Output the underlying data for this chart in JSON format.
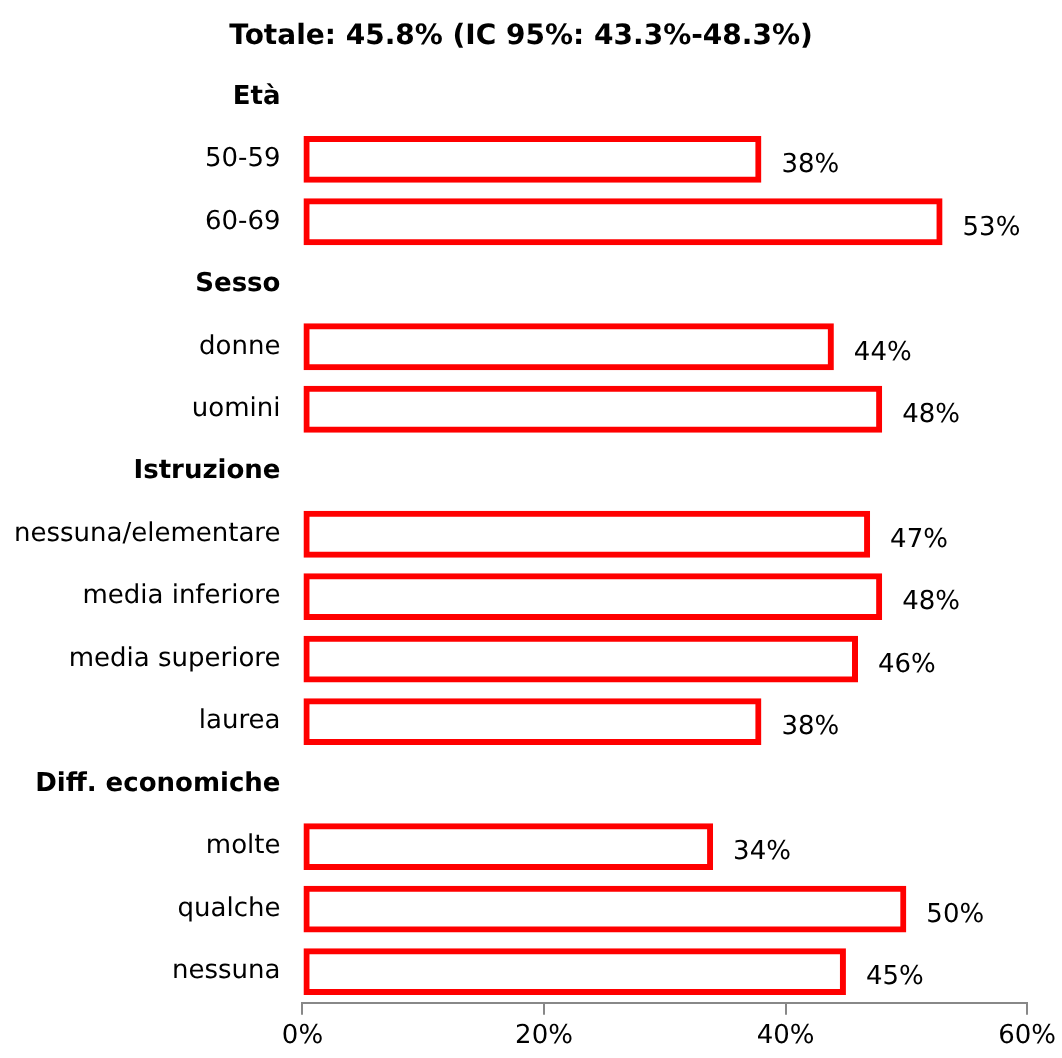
{
  "chart_data": {
    "type": "bar",
    "orientation": "horizontal",
    "title": "Totale: 45.8% (IC 95%: 43.3%-48.3%)",
    "categories": [
      "Età",
      "50-59",
      "60-69",
      "Sesso",
      "donne",
      "uomini",
      "Istruzione",
      "nessuna/elementare",
      "media inferiore",
      "media superiore",
      "laurea",
      "Diff. economiche",
      "molte",
      "qualche",
      "nessuna"
    ],
    "values": [
      null,
      38,
      53,
      null,
      44,
      48,
      null,
      47,
      48,
      46,
      38,
      null,
      34,
      50,
      45
    ],
    "value_labels": [
      null,
      "38%",
      "53%",
      null,
      "44%",
      "48%",
      null,
      "47%",
      "48%",
      "46%",
      "38%",
      null,
      "34%",
      "50%",
      "45%"
    ],
    "color": "#ff0000",
    "xlim": [
      0,
      60
    ],
    "xticks": [
      {
        "value": 0,
        "label": "0%"
      },
      {
        "value": 20,
        "label": "20%"
      },
      {
        "value": 40,
        "label": "40%"
      },
      {
        "value": 60,
        "label": "60%"
      }
    ],
    "grid": false,
    "legend": false
  }
}
